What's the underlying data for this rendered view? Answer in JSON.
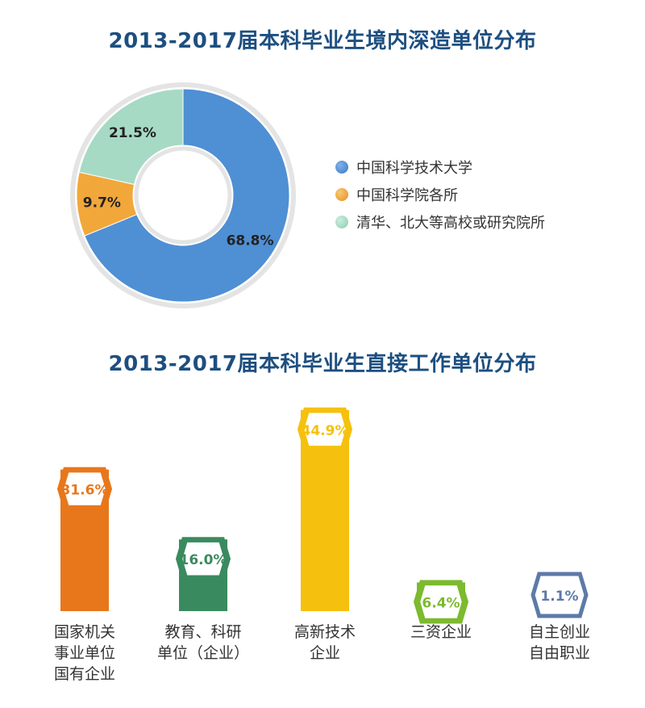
{
  "chart_data": [
    {
      "type": "pie",
      "title": "2013-2017届本科毕业生境内深造单位分布",
      "categories": [
        "中国科学技术大学",
        "中国科学院各所",
        "清华、北大等高校或研究院所"
      ],
      "values": [
        68.8,
        9.7,
        21.5
      ],
      "value_labels": [
        "68.8%",
        "9.7%",
        "21.5%"
      ],
      "colors": [
        "#4f8fd4",
        "#f2a73a",
        "#a6dac4"
      ],
      "legend": "right"
    },
    {
      "type": "bar",
      "title": "2013-2017届本科毕业生直接工作单位分布",
      "categories": [
        "国家机关\n事业单位\n国有企业",
        "教育、科研\n单位（企业）",
        "高新技术\n企业",
        "三资企业",
        "自主创业\n自由职业"
      ],
      "values": [
        31.6,
        16.0,
        44.9,
        6.4,
        1.1
      ],
      "value_labels": [
        "31.6%",
        "16.0%",
        "44.9%",
        "6.4%",
        "1.1%"
      ],
      "colors": [
        "#e8771c",
        "#3a8a5f",
        "#f5c10e",
        "#7cba2f",
        "#5d7aa8"
      ]
    }
  ]
}
